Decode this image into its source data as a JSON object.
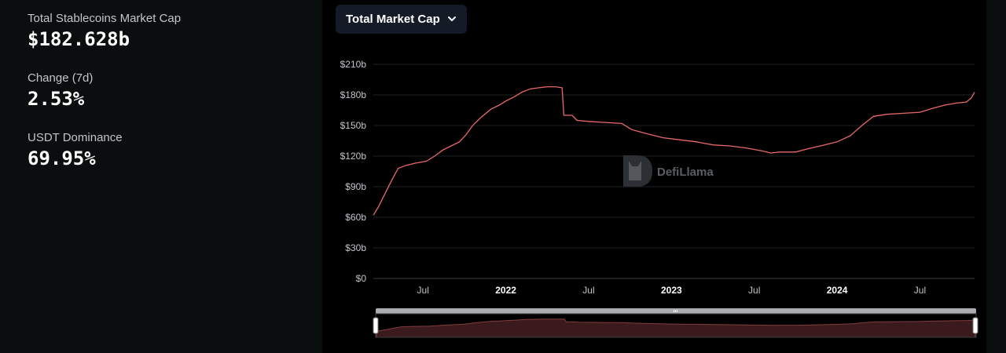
{
  "stats": [
    {
      "label": "Total Stablecoins Market Cap",
      "value": "$182.628b"
    },
    {
      "label": "Change (7d)",
      "value": "2.53%"
    },
    {
      "label": "USDT Dominance",
      "value": "69.95%"
    }
  ],
  "dropdown": {
    "label": "Total Market Cap",
    "icon": "chevron-down-icon"
  },
  "watermark": {
    "text": "DefiLlama",
    "icon": "defillama-logo-icon"
  },
  "colors": {
    "line": "#e8696a",
    "grid": "#1c1f23",
    "area_fill": "#3a1a1c",
    "brush_bar": "#a9abae"
  },
  "chart_data": {
    "type": "line",
    "title": "Total Market Cap",
    "ylabel": "",
    "xlabel": "",
    "ylim": [
      0,
      210
    ],
    "yticks": [
      0,
      30,
      60,
      90,
      120,
      150,
      180,
      210
    ],
    "ytick_labels": [
      "$0",
      "$30b",
      "$60b",
      "$90b",
      "$120b",
      "$150b",
      "$180b",
      "$210b"
    ],
    "xlim": [
      2021.2,
      2024.83
    ],
    "xticks": [
      {
        "x": 2021.5,
        "label": "Jul",
        "major": false
      },
      {
        "x": 2022.0,
        "label": "2022",
        "major": true
      },
      {
        "x": 2022.5,
        "label": "Jul",
        "major": false
      },
      {
        "x": 2023.0,
        "label": "2023",
        "major": true
      },
      {
        "x": 2023.5,
        "label": "Jul",
        "major": false
      },
      {
        "x": 2024.0,
        "label": "2024",
        "major": true
      },
      {
        "x": 2024.5,
        "label": "Jul",
        "major": false
      }
    ],
    "series": [
      {
        "name": "Total Market Cap",
        "unit": "billion USD",
        "points": [
          [
            2021.2,
            62
          ],
          [
            2021.23,
            70
          ],
          [
            2021.27,
            83
          ],
          [
            2021.31,
            96
          ],
          [
            2021.35,
            108
          ],
          [
            2021.4,
            111
          ],
          [
            2021.45,
            113
          ],
          [
            2021.52,
            115
          ],
          [
            2021.57,
            120
          ],
          [
            2021.62,
            126
          ],
          [
            2021.67,
            130
          ],
          [
            2021.72,
            134
          ],
          [
            2021.76,
            141
          ],
          [
            2021.8,
            150
          ],
          [
            2021.85,
            158
          ],
          [
            2021.91,
            166
          ],
          [
            2021.96,
            170
          ],
          [
            2022.0,
            174
          ],
          [
            2022.05,
            178
          ],
          [
            2022.1,
            183
          ],
          [
            2022.15,
            186
          ],
          [
            2022.2,
            187
          ],
          [
            2022.25,
            188
          ],
          [
            2022.3,
            188
          ],
          [
            2022.34,
            187
          ],
          [
            2022.35,
            160
          ],
          [
            2022.4,
            160
          ],
          [
            2022.43,
            155
          ],
          [
            2022.5,
            154
          ],
          [
            2022.6,
            153
          ],
          [
            2022.7,
            152
          ],
          [
            2022.76,
            146
          ],
          [
            2022.85,
            142
          ],
          [
            2022.95,
            138
          ],
          [
            2023.05,
            136
          ],
          [
            2023.15,
            134
          ],
          [
            2023.25,
            131
          ],
          [
            2023.35,
            130
          ],
          [
            2023.45,
            128
          ],
          [
            2023.55,
            125
          ],
          [
            2023.6,
            123
          ],
          [
            2023.65,
            124
          ],
          [
            2023.75,
            124
          ],
          [
            2023.82,
            127
          ],
          [
            2023.9,
            130
          ],
          [
            2024.0,
            134
          ],
          [
            2024.08,
            140
          ],
          [
            2024.15,
            150
          ],
          [
            2024.22,
            159
          ],
          [
            2024.3,
            161
          ],
          [
            2024.4,
            162
          ],
          [
            2024.5,
            163
          ],
          [
            2024.58,
            167
          ],
          [
            2024.65,
            170
          ],
          [
            2024.72,
            172
          ],
          [
            2024.78,
            173
          ],
          [
            2024.81,
            177
          ],
          [
            2024.83,
            182.6
          ]
        ]
      }
    ]
  }
}
